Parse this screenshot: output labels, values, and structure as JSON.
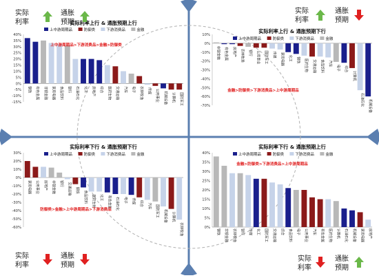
{
  "corners": {
    "top_left": {
      "real_rate": "实际\n利率",
      "real_rate_dir": "up",
      "inflation": "通胀\n预期",
      "inflation_dir": "up"
    },
    "top_right": {
      "real_rate": "实际\n利率",
      "real_rate_dir": "up",
      "inflation": "通胀\n预期",
      "inflation_dir": "down"
    },
    "bottom_left": {
      "real_rate": "实际\n利率",
      "real_rate_dir": "down",
      "inflation": "通胀\n预期",
      "inflation_dir": "down"
    },
    "bottom_right": {
      "real_rate": "实际\n利率",
      "real_rate_dir": "down",
      "inflation": "通胀\n预期",
      "inflation_dir": "up"
    }
  },
  "colors": {
    "upstream": "#1a1f8c",
    "defensive": "#8b1a1a",
    "downstream": "#c6d3e9",
    "finance": "#b8b8b8",
    "arrow_up": "#6bb84a",
    "arrow_down": "#e02020",
    "ranking_text": "#e02020",
    "axis_cross": "#5b7fb0"
  },
  "chart_data": [
    {
      "type": "bar",
      "title": "实际利率上行 & 通胀预期上行",
      "legend": [
        {
          "name": "上中游周期品",
          "key": "upstream"
        },
        {
          "name": "防御类",
          "key": "defensive"
        },
        {
          "name": "下游消费品",
          "key": "downstream"
        },
        {
          "name": "金融",
          "key": "finance"
        }
      ],
      "annotation": "上中游周期品>下游消费品>金融>防御类",
      "ylim": [
        -15,
        40
      ],
      "yticks": [
        -15,
        -10,
        -5,
        0,
        5,
        10,
        15,
        20,
        25,
        30,
        35,
        40
      ],
      "ytick_labels": [
        "-15%",
        "-10%",
        "-5%",
        "0%",
        "5%",
        "10%",
        "15%",
        "20%",
        "25%",
        "30%",
        "35%",
        "40%"
      ],
      "categories": [
        "钢铁",
        "有色金属",
        "非银金融",
        "家用电器",
        "食品饮料",
        "银行",
        "石油石化",
        "化工",
        "房地产",
        "综合",
        "医药生物",
        "交通运输",
        "汽车",
        "电子",
        "农林牧渔",
        "传媒",
        "公用事业",
        "机械设备",
        "计算机",
        "国防军工"
      ],
      "values": [
        37,
        34,
        35,
        33,
        32,
        31,
        20,
        20,
        20,
        19,
        15,
        14,
        10,
        8,
        6,
        -1,
        -2,
        -4,
        -5,
        -5
      ],
      "groups": [
        "upstream",
        "upstream",
        "finance",
        "downstream",
        "downstream",
        "finance",
        "downstream",
        "upstream",
        "upstream",
        "upstream",
        "downstream",
        "defensive",
        "downstream",
        "finance",
        "defensive",
        "downstream",
        "defensive",
        "upstream",
        "defensive",
        "defensive"
      ]
    },
    {
      "type": "bar",
      "title": "实际利率上行 & 通胀预期下行",
      "legend": [
        {
          "name": "上中游周期品",
          "key": "upstream"
        },
        {
          "name": "防御类",
          "key": "defensive"
        },
        {
          "name": "下游消费品",
          "key": "downstream"
        },
        {
          "name": "金融",
          "key": "finance"
        }
      ],
      "annotation": "金融>防御类>下游消费品>上中游周期品",
      "ylim": [
        -70,
        10
      ],
      "yticks": [
        -70,
        -60,
        -50,
        -40,
        -30,
        -20,
        -10,
        0,
        10
      ],
      "ytick_labels": [
        "-70%",
        "-60%",
        "-50%",
        "-40%",
        "-30%",
        "-20%",
        "-10%",
        "0%",
        "10%"
      ],
      "categories": [
        "非银金融",
        "有色金属",
        "房地产",
        "农林牧渔",
        "银行",
        "公用事业",
        "国防军工",
        "传媒",
        "家用电器",
        "化工",
        "钢铁",
        "医药生物",
        "交通运输",
        "食品饮料",
        "汽车",
        "电子",
        "综合",
        "计算机",
        "石油石化",
        "机械设备"
      ],
      "values": [
        1,
        -1,
        -1,
        -3,
        -4,
        -5,
        -5,
        -6,
        -7,
        -10,
        -12,
        -14,
        -15,
        -15,
        -16,
        -21,
        -22,
        -28,
        -53,
        -60
      ],
      "groups": [
        "finance",
        "upstream",
        "upstream",
        "defensive",
        "finance",
        "defensive",
        "defensive",
        "downstream",
        "downstream",
        "upstream",
        "upstream",
        "downstream",
        "defensive",
        "downstream",
        "downstream",
        "finance",
        "upstream",
        "defensive",
        "downstream",
        "upstream"
      ]
    },
    {
      "type": "bar",
      "title": "实际利率下行 & 通胀预期下行",
      "legend": [
        {
          "name": "上中游周期品",
          "key": "upstream"
        },
        {
          "name": "防御类",
          "key": "defensive"
        },
        {
          "name": "下游消费品",
          "key": "downstream"
        },
        {
          "name": "金融",
          "key": "finance"
        }
      ],
      "annotation": "防御类>金融>上中游周期品>下游消费品",
      "ylim": [
        -60,
        30
      ],
      "yticks": [
        -60,
        -50,
        -40,
        -30,
        -20,
        -10,
        0,
        10,
        20,
        30
      ],
      "ytick_labels": [
        "-60%",
        "-50%",
        "-40%",
        "-30%",
        "-20%",
        "-10%",
        "0%",
        "10%",
        "20%",
        "30%"
      ],
      "categories": [
        "家用电器",
        "公用事业",
        "房地产",
        "非银金融",
        "银行",
        "交通运输",
        "钢铁",
        "食品饮料",
        "医药生物",
        "化工",
        "有色金属",
        "石油石化",
        "电子",
        "传媒",
        "综合",
        "汽车",
        "国防军工",
        "机械设备",
        "计算机",
        "农林牧渔"
      ],
      "values": [
        20,
        13,
        13,
        12,
        6,
        -2,
        -8,
        -12,
        -17,
        -17,
        -18,
        -20,
        -20,
        -21,
        -24,
        -27,
        -29,
        -35,
        -38,
        -51
      ],
      "groups": [
        "defensive",
        "defensive",
        "downstream",
        "finance",
        "finance",
        "downstream",
        "defensive",
        "upstream",
        "downstream",
        "downstream",
        "upstream",
        "upstream",
        "downstream",
        "upstream",
        "defensive",
        "downstream",
        "finance",
        "downstream",
        "defensive",
        "downstream"
      ]
    },
    {
      "type": "bar",
      "title": "实际利率下行 & 通胀预期上行",
      "legend": [
        {
          "name": "上中游周期品",
          "key": "upstream"
        },
        {
          "name": "防御类",
          "key": "defensive"
        },
        {
          "name": "下游消费品",
          "key": "downstream"
        },
        {
          "name": "金融",
          "key": "finance"
        }
      ],
      "annotation": "金融>防御类>下游消费品>上中游周期品",
      "ylim": [
        0,
        40
      ],
      "yticks": [
        0,
        5,
        10,
        15,
        20,
        25,
        30,
        35,
        40
      ],
      "ytick_labels": [
        "0%",
        "5%",
        "10%",
        "15%",
        "20%",
        "25%",
        "30%",
        "35%",
        "40%"
      ],
      "categories": [
        "钢铁",
        "非银金融",
        "农林牧渔",
        "银行",
        "传媒",
        "化工",
        "国防军工",
        "交通运输",
        "综合",
        "食品饮料",
        "电子",
        "公用事业",
        "汽车",
        "有色金属",
        "医药生物",
        "计算机",
        "石油石化",
        "机械设备",
        "家用电器",
        "房地产"
      ],
      "values": [
        38,
        33,
        29,
        29,
        28,
        26,
        26,
        24,
        23,
        21,
        20,
        20,
        16,
        15,
        15,
        14,
        10,
        9,
        8,
        4
      ],
      "groups": [
        "finance",
        "finance",
        "downstream",
        "finance",
        "downstream",
        "upstream",
        "defensive",
        "downstream",
        "downstream",
        "upstream",
        "finance",
        "defensive",
        "defensive",
        "defensive",
        "downstream",
        "finance",
        "upstream",
        "upstream",
        "defensive",
        "downstream"
      ]
    }
  ]
}
